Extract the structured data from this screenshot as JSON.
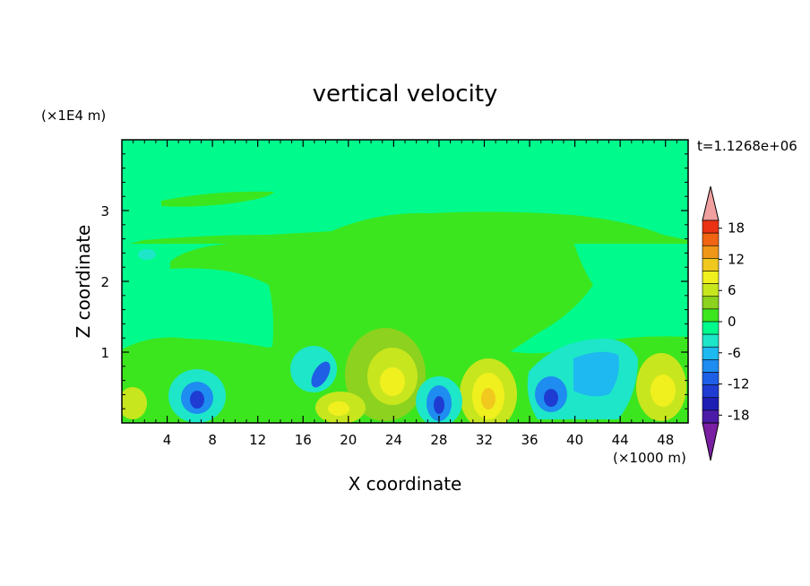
{
  "chart_data": {
    "type": "heatmap",
    "title": "vertical velocity",
    "xlabel": "X coordinate",
    "ylabel": "Z coordinate",
    "x_unit": "(×1000 m)",
    "y_unit": "(×1E4 m)",
    "time_label": "t=1.1268e+06",
    "xlim": [
      0,
      50
    ],
    "ylim": [
      0,
      4
    ],
    "x_ticks": [
      4,
      8,
      12,
      16,
      20,
      24,
      28,
      32,
      36,
      40,
      44,
      48
    ],
    "y_ticks": [
      1,
      2,
      3
    ],
    "colorbar": {
      "levels": [
        -21,
        -18,
        -15,
        -12,
        -9,
        -6,
        -3,
        0,
        3,
        6,
        9,
        12,
        15,
        18,
        21
      ],
      "tick_labels": [
        18,
        12,
        6,
        0,
        -6,
        -12,
        -18
      ],
      "colors": [
        "#7a1fa2",
        "#4b1ba8",
        "#1e1eb4",
        "#1e3cd2",
        "#1e5fe6",
        "#1e8cf0",
        "#1eb9f0",
        "#1ee6c8",
        "#00fa8c",
        "#3ce61e",
        "#8cd21e",
        "#c8e61e",
        "#f0f01e",
        "#f0c81e",
        "#f09619",
        "#f06414",
        "#eb3214",
        "#f0a0a0"
      ]
    },
    "features": [
      {
        "x": 6.5,
        "z": 0.35,
        "value": -14
      },
      {
        "x": 18.0,
        "z": 0.7,
        "value": -12
      },
      {
        "x": 19.0,
        "z": 0.2,
        "value": 8
      },
      {
        "x": 23.5,
        "z": 0.6,
        "value": 11
      },
      {
        "x": 28.0,
        "z": 0.3,
        "value": -13
      },
      {
        "x": 32.0,
        "z": 0.4,
        "value": 12
      },
      {
        "x": 38.0,
        "z": 0.4,
        "value": -12
      },
      {
        "x": 42.0,
        "z": 0.8,
        "value": -8
      },
      {
        "x": 47.5,
        "z": 0.5,
        "value": 9
      }
    ]
  }
}
